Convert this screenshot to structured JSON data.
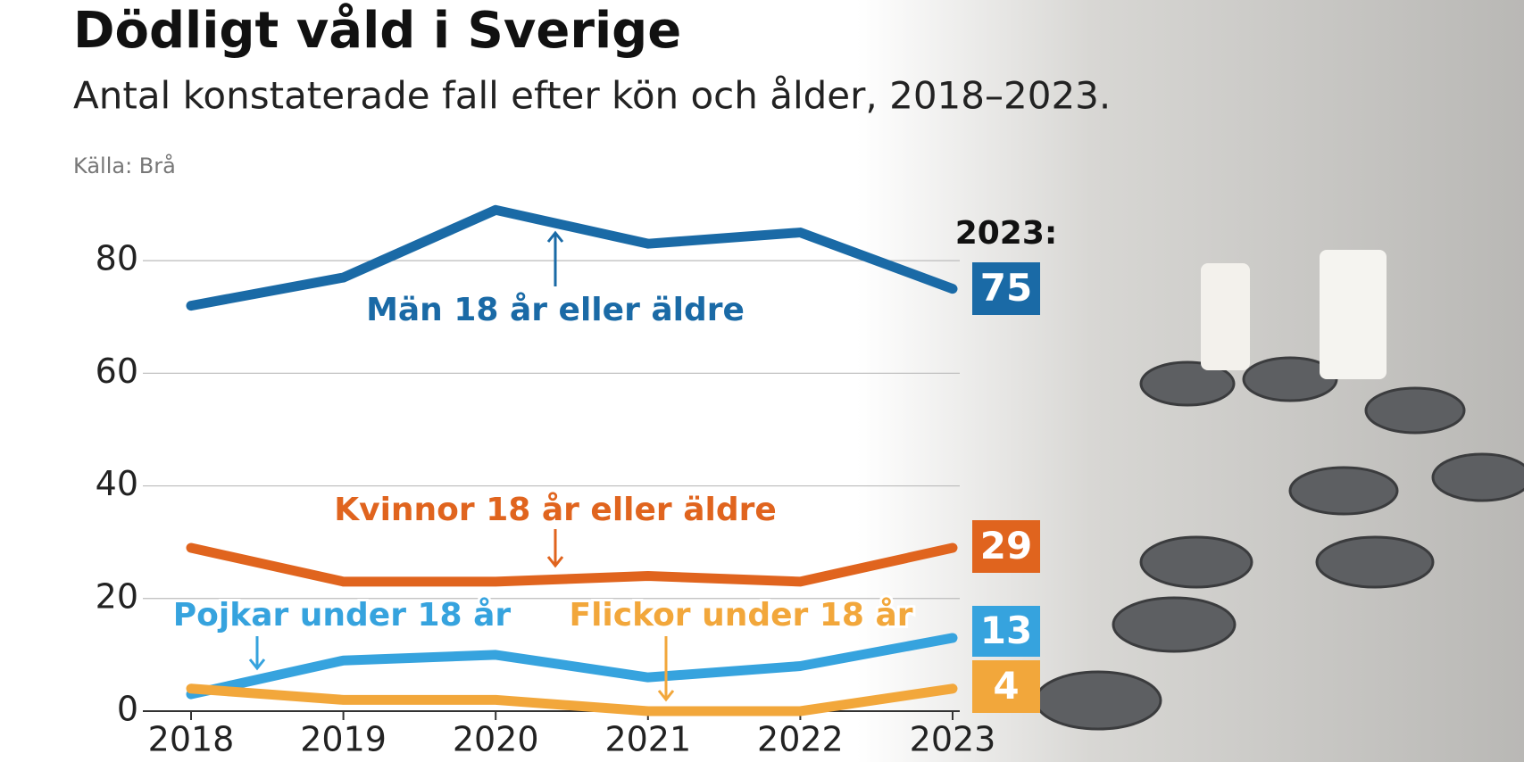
{
  "chart_data": {
    "type": "line",
    "title": "Dödligt våld i Sverige",
    "subtitle": "Antal konstaterade fall efter kön och ålder, 2018–2023.",
    "source": "Källa: Brå",
    "end_label_title": "2023:",
    "categories": [
      "2018",
      "2019",
      "2020",
      "2021",
      "2022",
      "2023"
    ],
    "ylim": [
      0,
      90
    ],
    "yticks": [
      0,
      20,
      40,
      60,
      80
    ],
    "grid": true,
    "series": [
      {
        "name": "Män 18 år eller äldre",
        "color": "#1a6aa6",
        "values": [
          72,
          77,
          89,
          83,
          85,
          75
        ]
      },
      {
        "name": "Kvinnor 18 år eller äldre",
        "color": "#e0641e",
        "values": [
          29,
          23,
          23,
          24,
          23,
          29
        ]
      },
      {
        "name": "Pojkar under 18 år",
        "color": "#36a3de",
        "values": [
          3,
          9,
          10,
          6,
          8,
          13
        ]
      },
      {
        "name": "Flickor under 18 år",
        "color": "#f2a73b",
        "values": [
          4,
          2,
          2,
          0,
          0,
          4
        ]
      }
    ]
  }
}
